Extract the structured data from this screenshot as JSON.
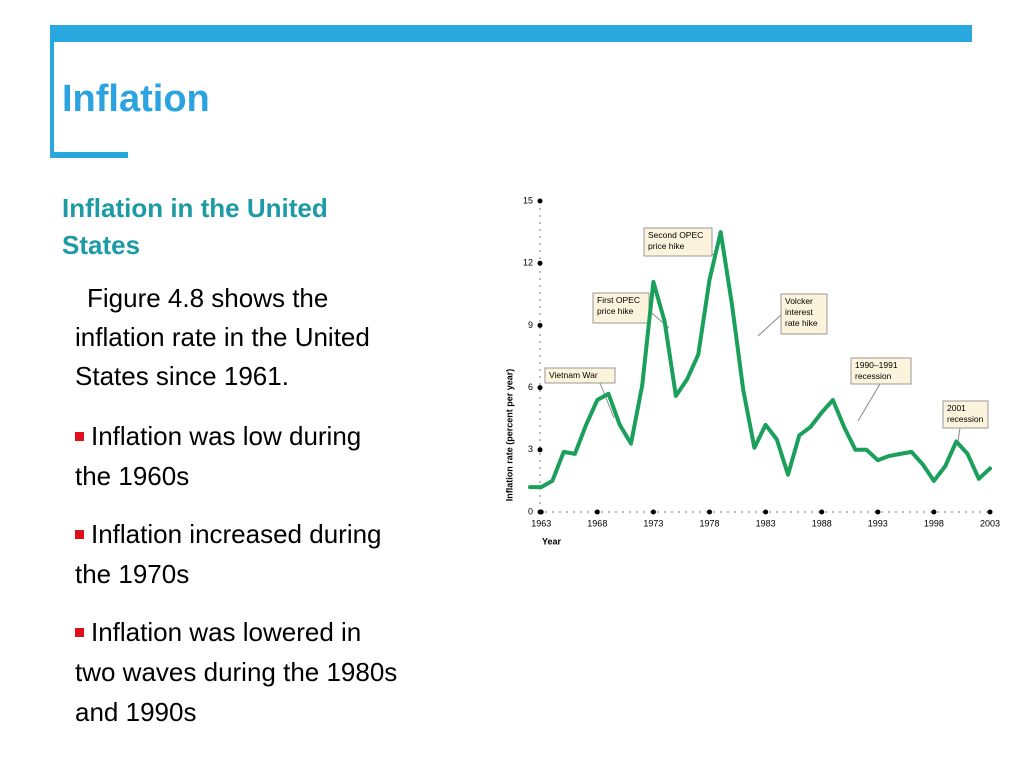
{
  "slide": {
    "title": "Inflation",
    "heading": [
      "Inflation in the United",
      "States"
    ],
    "intro": [
      "Figure 4.8 shows the",
      "inflation rate in the United",
      "States since 1961."
    ],
    "bullets": [
      [
        "Inflation was low during",
        "the 1960s"
      ],
      [
        "Inflation increased during",
        "the 1970s"
      ],
      [
        "Inflation was lowered in",
        "two waves during the 1980s",
        "and 1990s"
      ]
    ]
  },
  "chart_data": {
    "type": "line",
    "x_label": "Year",
    "y_label": "Inflation rate (percent per year)",
    "x": [
      1962,
      1963,
      1964,
      1965,
      1966,
      1967,
      1968,
      1969,
      1970,
      1971,
      1972,
      1973,
      1974,
      1975,
      1976,
      1977,
      1978,
      1979,
      1980,
      1981,
      1982,
      1983,
      1984,
      1985,
      1986,
      1987,
      1988,
      1989,
      1990,
      1991,
      1992,
      1993,
      1994,
      1995,
      1996,
      1997,
      1998,
      1999,
      2000,
      2001,
      2002,
      2003
    ],
    "values": [
      1.2,
      1.2,
      1.5,
      2.9,
      2.8,
      4.2,
      5.4,
      5.7,
      4.2,
      3.3,
      6.1,
      11.1,
      9.2,
      5.6,
      6.4,
      7.6,
      11.2,
      13.5,
      10.0,
      5.9,
      3.1,
      4.2,
      3.5,
      1.8,
      3.7,
      4.1,
      4.8,
      5.4,
      4.1,
      3.0,
      3.0,
      2.5,
      2.7,
      2.8,
      2.9,
      2.3,
      1.5,
      2.2,
      3.4,
      2.8,
      1.6,
      2.1
    ],
    "color": "#1aa05a",
    "xlim": [
      1962,
      2003
    ],
    "xticks": [
      1963,
      1968,
      1973,
      1978,
      1983,
      1988,
      1993,
      1998,
      2003
    ],
    "ylim": [
      0,
      15
    ],
    "yticks": [
      0,
      3,
      6,
      9,
      12,
      15
    ],
    "annotations": [
      [
        "Vietnam War"
      ],
      [
        "First OPEC",
        "price hike"
      ],
      [
        "Second OPEC",
        "price hike"
      ],
      [
        "Volcker",
        "interest",
        "rate hike"
      ],
      [
        "1990–1991",
        "recession"
      ],
      [
        "2001",
        "recession"
      ]
    ]
  }
}
